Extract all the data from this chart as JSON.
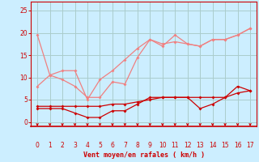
{
  "x": [
    0,
    1,
    2,
    3,
    4,
    5,
    6,
    7,
    8,
    9,
    10,
    11,
    12,
    13,
    14,
    15,
    16,
    17
  ],
  "line1_y": [
    19.5,
    10.5,
    9.5,
    8.0,
    5.5,
    5.5,
    9.0,
    8.5,
    14.5,
    18.5,
    17.0,
    19.5,
    17.5,
    17.0,
    18.5,
    18.5,
    19.5,
    21.0
  ],
  "line2_y": [
    8.0,
    10.5,
    11.5,
    11.5,
    5.0,
    9.5,
    11.5,
    14.0,
    16.5,
    18.5,
    17.5,
    18.0,
    17.5,
    17.0,
    18.5,
    18.5,
    19.5,
    21.0
  ],
  "line3_y": [
    3.0,
    3.0,
    3.0,
    2.0,
    1.0,
    1.0,
    2.5,
    2.5,
    4.0,
    5.5,
    5.5,
    5.5,
    5.5,
    3.0,
    4.0,
    5.5,
    8.0,
    7.0
  ],
  "line4_y": [
    3.5,
    3.5,
    3.5,
    3.5,
    3.5,
    3.5,
    4.0,
    4.0,
    4.5,
    5.0,
    5.5,
    5.5,
    5.5,
    5.5,
    5.5,
    5.5,
    6.5,
    7.0
  ],
  "color_light": "#f08080",
  "color_dark": "#cc0000",
  "bg_color": "#cceeff",
  "grid_color": "#aacccc",
  "xlabel": "Vent moyen/en rafales ( km/h )",
  "xlabel_color": "#cc0000",
  "tick_color": "#cc0000",
  "ylim": [
    -1,
    27
  ],
  "xlim": [
    -0.5,
    17.5
  ],
  "yticks": [
    0,
    5,
    10,
    15,
    20,
    25
  ],
  "xticks": [
    0,
    1,
    2,
    3,
    4,
    5,
    6,
    7,
    8,
    9,
    10,
    11,
    12,
    13,
    14,
    15,
    16,
    17
  ]
}
